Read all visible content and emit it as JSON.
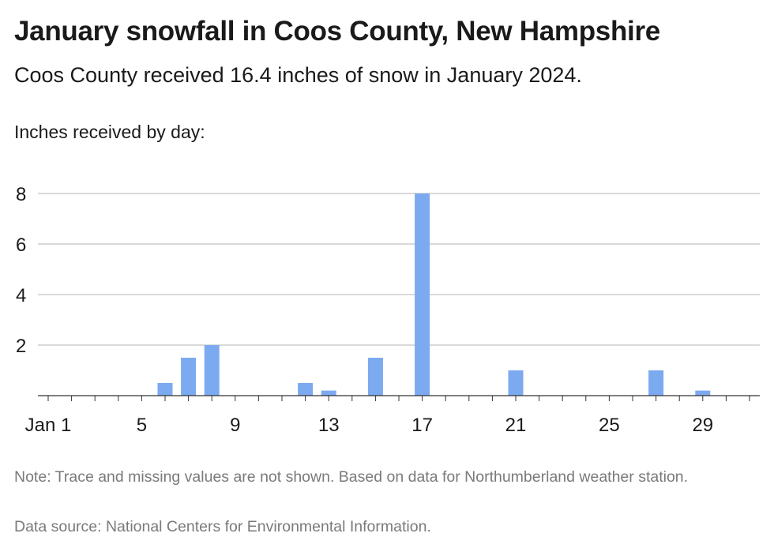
{
  "title": "January snowfall in Coos County, New Hampshire",
  "subtitle": "Coos County received 16.4 inches of snow in January 2024.",
  "note": "Note: Trace and missing values are not shown. Based on data for Northumberland weather station.",
  "source": "Data source: National Centers for Environmental Information.",
  "colors": {
    "bar": "#7caaf0",
    "grid": "#b3b3b3",
    "axis": "#333333"
  },
  "chart_data": {
    "type": "bar",
    "ylabel": "Inches received by day:",
    "xlabel": "",
    "ylim": [
      0,
      8
    ],
    "yticks": [
      2,
      4,
      6,
      8
    ],
    "xlim": [
      1,
      31
    ],
    "xticks": [
      {
        "day": 1,
        "label": "Jan 1"
      },
      {
        "day": 5,
        "label": "5"
      },
      {
        "day": 9,
        "label": "9"
      },
      {
        "day": 13,
        "label": "13"
      },
      {
        "day": 17,
        "label": "17"
      },
      {
        "day": 21,
        "label": "21"
      },
      {
        "day": 25,
        "label": "25"
      },
      {
        "day": 29,
        "label": "29"
      }
    ],
    "grid": true,
    "values": [
      {
        "day": 6,
        "inches": 0.5
      },
      {
        "day": 7,
        "inches": 1.5
      },
      {
        "day": 8,
        "inches": 2
      },
      {
        "day": 12,
        "inches": 0.5
      },
      {
        "day": 13,
        "inches": 0.2
      },
      {
        "day": 15,
        "inches": 1.5
      },
      {
        "day": 17,
        "inches": 8
      },
      {
        "day": 21,
        "inches": 1
      },
      {
        "day": 27,
        "inches": 1
      },
      {
        "day": 29,
        "inches": 0.2
      }
    ]
  }
}
